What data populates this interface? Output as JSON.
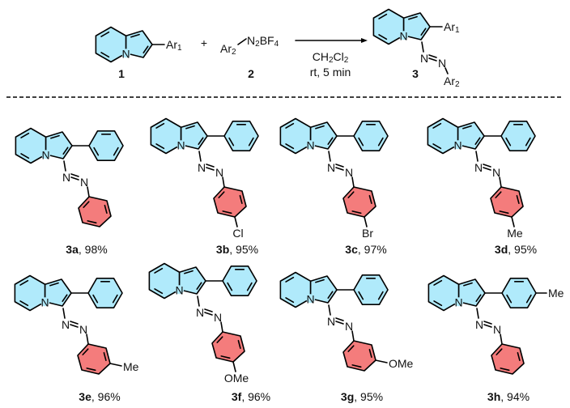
{
  "colors": {
    "indolizine_fill": "#b0eafb",
    "aryl2_fill": "#f47c7c",
    "bond": "#000000"
  },
  "scheme": {
    "reactant1": {
      "substituent": [
        [
          "Ar",
          0
        ],
        [
          "1",
          1
        ]
      ],
      "number": "1"
    },
    "plus": "+",
    "reactant2": {
      "aryl": [
        [
          "Ar",
          0
        ],
        [
          "2",
          1
        ]
      ],
      "salt": [
        [
          "N",
          0
        ],
        [
          "2",
          1
        ],
        [
          "BF",
          0
        ],
        [
          "4",
          1
        ]
      ],
      "number": "2"
    },
    "conditions": {
      "solvent": [
        [
          "CH",
          0
        ],
        [
          "2",
          1
        ],
        [
          "Cl",
          0
        ],
        [
          "2",
          1
        ]
      ],
      "time": "rt, 5 min"
    },
    "product": {
      "ar1": [
        [
          "Ar",
          0
        ],
        [
          "1",
          1
        ]
      ],
      "azo_n1": "N",
      "azo_n2": "N",
      "ar2": [
        [
          "Ar",
          0
        ],
        [
          "2",
          1
        ]
      ],
      "number": "3"
    }
  },
  "ring_atom_label": "N",
  "compounds": [
    {
      "id": "3a",
      "yield": ", 98%",
      "aryl2_substituent": "",
      "aryl2_position": "",
      "aryl1_substituent": ""
    },
    {
      "id": "3b",
      "yield": ", 95%",
      "aryl2_substituent": "Cl",
      "aryl2_position": "para",
      "aryl1_substituent": ""
    },
    {
      "id": "3c",
      "yield": ", 97%",
      "aryl2_substituent": "Br",
      "aryl2_position": "para",
      "aryl1_substituent": ""
    },
    {
      "id": "3d",
      "yield": ", 95%",
      "aryl2_substituent": "Me",
      "aryl2_position": "para",
      "aryl1_substituent": ""
    },
    {
      "id": "3e",
      "yield": ", 96%",
      "aryl2_substituent": "Me",
      "aryl2_position": "meta",
      "aryl1_substituent": ""
    },
    {
      "id": "3f",
      "yield": ", 96%",
      "aryl2_substituent": "OMe",
      "aryl2_position": "para",
      "aryl1_substituent": ""
    },
    {
      "id": "3g",
      "yield": ", 95%",
      "aryl2_substituent": "OMe",
      "aryl2_position": "meta",
      "aryl1_substituent": ""
    },
    {
      "id": "3h",
      "yield": ", 94%",
      "aryl2_substituent": "",
      "aryl2_position": "",
      "aryl1_substituent": "Me"
    }
  ]
}
